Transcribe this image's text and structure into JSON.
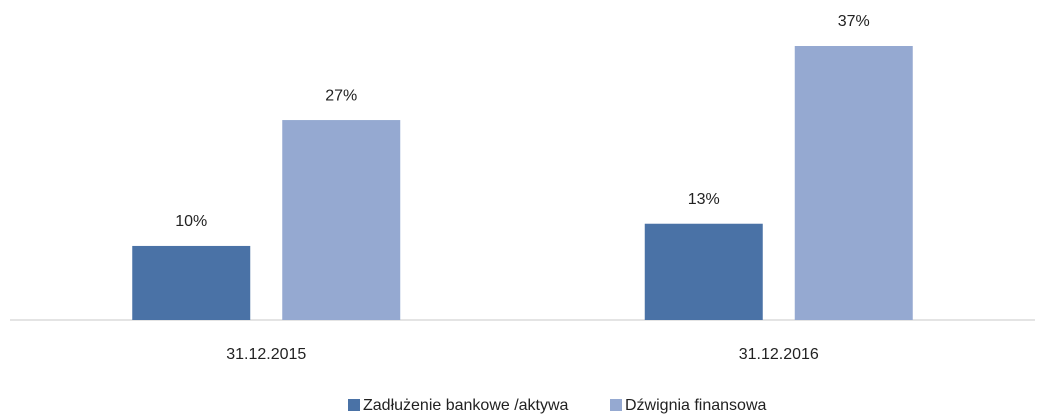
{
  "chart_data": {
    "type": "bar",
    "categories": [
      "31.12.2015",
      "31.12.2016"
    ],
    "series": [
      {
        "name": "Zadłużenie bankowe /aktywa",
        "color": "#4a72a6",
        "values": [
          10,
          13
        ],
        "value_labels": [
          "10%",
          "13%"
        ]
      },
      {
        "name": "Dźwignia finansowa",
        "color": "#95a9d1",
        "values": [
          27,
          37
        ],
        "value_labels": [
          "27%",
          "37%"
        ]
      }
    ],
    "legend": "bottom"
  }
}
